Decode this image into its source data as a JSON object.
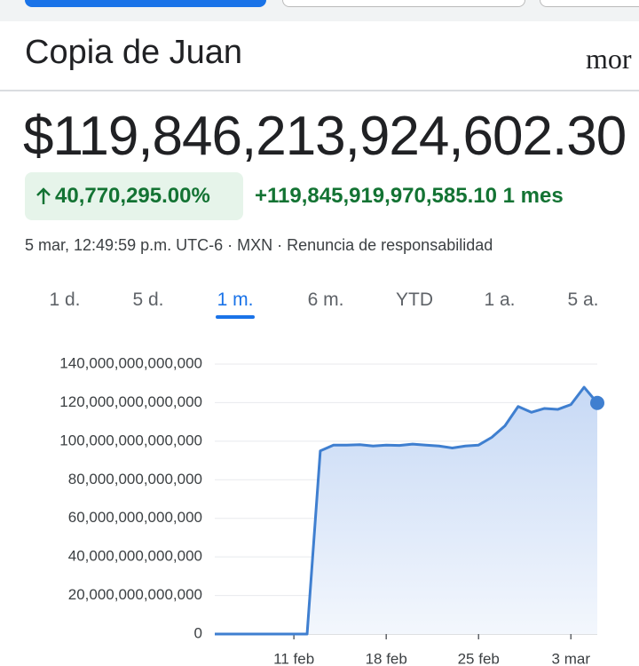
{
  "header": {
    "title": "Copia de Juan",
    "logo": "mor"
  },
  "price": "$119,846,213,924,602.30",
  "change_percent": "40,770,295.00%",
  "change_value": "+119,845,919,970,585.10",
  "change_period": "1 mes",
  "timestamp": "5 mar, 12:49:59 p.m. UTC-6 · MXN · Renuncia de responsabilidad",
  "tabs": [
    "1 d.",
    "5 d.",
    "1 m.",
    "6 m.",
    "YTD",
    "1 a.",
    "5 a."
  ],
  "selected_tab": 2,
  "chart_data": {
    "type": "area",
    "color": "#3f7fd0",
    "grid": true,
    "categories": [
      null,
      null,
      null,
      null,
      null,
      null,
      "11 feb",
      null,
      null,
      null,
      null,
      null,
      null,
      "18 feb",
      null,
      null,
      null,
      null,
      null,
      null,
      "25 feb",
      null,
      null,
      null,
      null,
      null,
      null,
      "3 mar",
      null,
      null
    ],
    "values": [
      0,
      0,
      0,
      0,
      0,
      0,
      0,
      0,
      95000000000000,
      98000000000000,
      98000000000000,
      98200000000000,
      97500000000000,
      98000000000000,
      97800000000000,
      98500000000000,
      98000000000000,
      97500000000000,
      96500000000000,
      97500000000000,
      98000000000000,
      102000000000000,
      108000000000000,
      118000000000000,
      115000000000000,
      117000000000000,
      116500000000000,
      119000000000000,
      128000000000000,
      119846213924602.3
    ],
    "ylim": [
      0,
      140000000000000
    ],
    "yticks": [
      0,
      {
        "value": 20000000000000,
        "label": "20,000,000,000,000"
      },
      {
        "value": 40000000000000,
        "label": "40,000,000,000,000"
      },
      {
        "value": 60000000000000,
        "label": "60,000,000,000,000"
      },
      {
        "value": 80000000000000,
        "label": "80,000,000,000,000"
      },
      {
        "value": 100000000000000,
        "label": "100,000,000,000,000"
      },
      {
        "value": 120000000000000,
        "label": "120,000,000,000,000"
      },
      {
        "value": 140000000000000,
        "label": "140,000,000,000,000"
      }
    ]
  }
}
